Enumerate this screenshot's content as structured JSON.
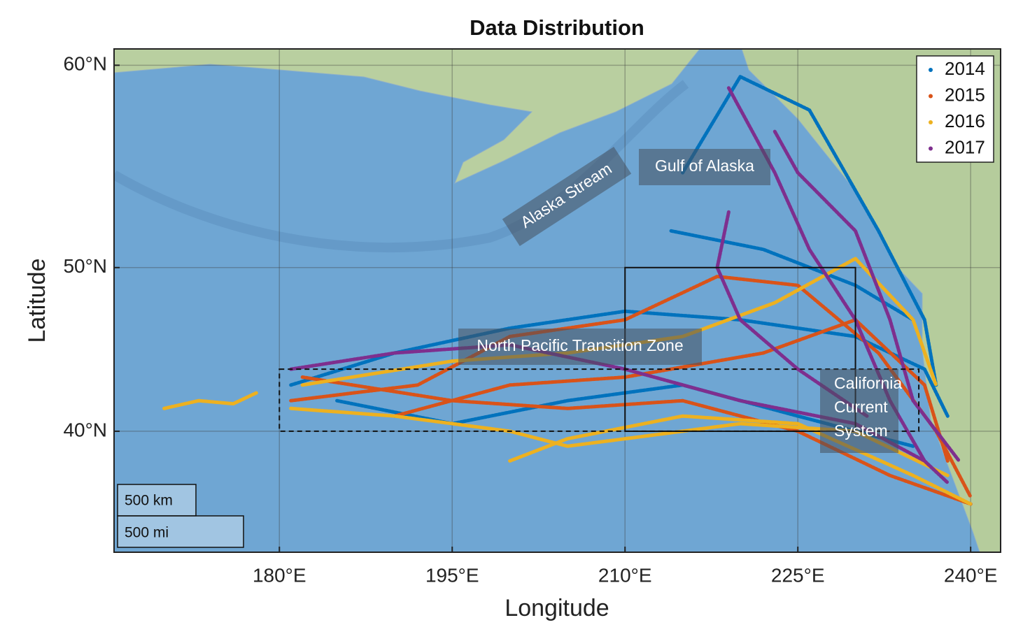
{
  "chart_data": {
    "type": "map",
    "projection": "mercator",
    "title": "Data Distribution",
    "x_label": "Longitude",
    "y_label": "Latitude",
    "xlim": [
      165.65,
      242.6
    ],
    "ylim": [
      31.5,
      60.7
    ],
    "xticks": [
      {
        "value": 180,
        "label": "180°E"
      },
      {
        "value": 195,
        "label": "195°E"
      },
      {
        "value": 210,
        "label": "210°E"
      },
      {
        "value": 225,
        "label": "225°E"
      },
      {
        "value": 240,
        "label": "240°E"
      }
    ],
    "yticks": [
      {
        "value": 40,
        "label": "40°N"
      },
      {
        "value": 50,
        "label": "50°N"
      },
      {
        "value": 60,
        "label": "60°N"
      }
    ],
    "grid": true,
    "legend": "upper right",
    "series": [
      {
        "name": "2014",
        "color": "#0072bd",
        "x": [
          181,
          190,
          200,
          210,
          220,
          230,
          236,
          238,
          null,
          215,
          220,
          226,
          232,
          236,
          237,
          null,
          185,
          195,
          205,
          215,
          225,
          235,
          null,
          214,
          222,
          230,
          235
        ],
        "y": [
          43,
          45,
          46.5,
          47.5,
          47,
          46,
          44,
          41,
          null,
          55,
          59.5,
          58,
          52,
          47,
          43,
          null,
          42,
          40.5,
          42,
          43,
          41,
          39,
          null,
          52,
          51,
          49,
          47
        ]
      },
      {
        "name": "2015",
        "color": "#d95319",
        "x": [
          181,
          192,
          200,
          210,
          218,
          225,
          232,
          237,
          240,
          null,
          182,
          195,
          205,
          215,
          225,
          233,
          240,
          null,
          190,
          200,
          210,
          222,
          230,
          236,
          238
        ],
        "y": [
          42,
          43,
          46,
          47,
          49.5,
          49,
          45,
          40,
          35.5,
          null,
          43.5,
          42,
          41.5,
          42,
          40,
          37,
          35,
          null,
          41,
          43,
          43.5,
          45,
          47,
          43,
          38
        ]
      },
      {
        "name": "2016",
        "color": "#edb120",
        "x": [
          170,
          173,
          176,
          178,
          null,
          181,
          190,
          200,
          205,
          210,
          220,
          230,
          238,
          null,
          182,
          195,
          205,
          215,
          223,
          230,
          235,
          237,
          null,
          200,
          205,
          215,
          225,
          235,
          240
        ],
        "y": [
          41.5,
          42,
          41.8,
          42.5,
          null,
          41.5,
          41,
          40,
          39,
          39.5,
          40.5,
          40,
          37,
          null,
          43,
          44.5,
          45,
          46,
          48,
          50.5,
          47,
          43,
          null,
          38,
          39.5,
          41,
          40.5,
          37,
          35
        ]
      },
      {
        "name": "2017",
        "color": "#7e2f8e",
        "x": [
          181,
          190,
          200,
          210,
          220,
          230,
          236,
          null,
          219,
          223,
          226,
          230,
          233,
          236,
          238,
          null,
          219,
          218,
          220,
          225,
          231,
          null,
          223,
          225,
          230,
          233,
          235,
          239
        ],
        "y": [
          44,
          45,
          45.5,
          44,
          42,
          40.5,
          38,
          null,
          59,
          55,
          51,
          47,
          42,
          38,
          36.5,
          null,
          53,
          50,
          47,
          44,
          41,
          null,
          57,
          55,
          52,
          47,
          42,
          38
        ]
      }
    ],
    "regions": [
      {
        "lon": [
          210,
          230
        ],
        "lat": [
          40,
          50
        ],
        "style": "solid"
      },
      {
        "lon": [
          180,
          235.5
        ],
        "lat": [
          40,
          44
        ],
        "style": "dashed"
      }
    ],
    "annotations": [
      {
        "text": "Alaska Stream"
      },
      {
        "text": "Gulf of Alaska"
      },
      {
        "text": "North Pacific Transition Zone"
      },
      {
        "lines": [
          "California",
          "Current",
          "System"
        ]
      }
    ],
    "scale_bar": [
      "500 km",
      "500 mi"
    ]
  }
}
